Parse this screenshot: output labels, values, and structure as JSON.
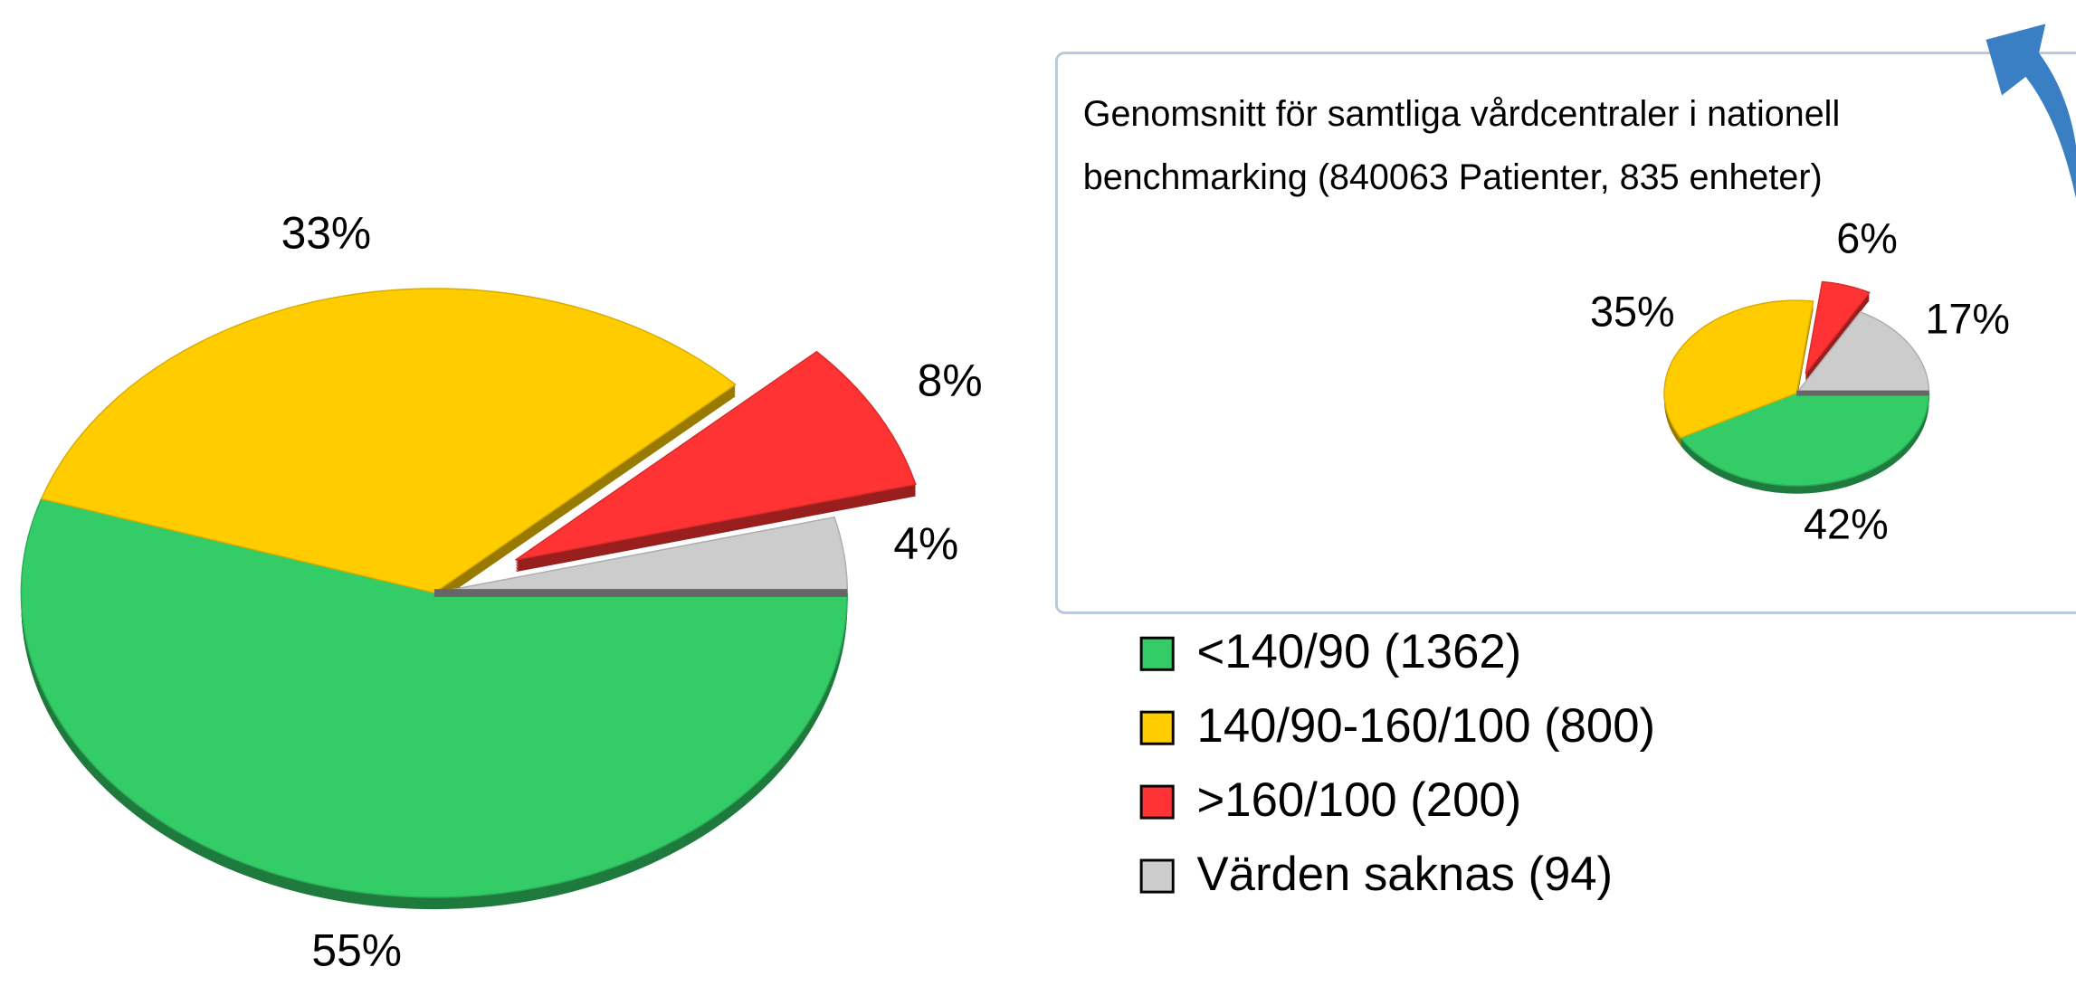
{
  "chart_data": [
    {
      "type": "pie",
      "categories": [
        "<140/90 (1362)",
        "140/90-160/100 (800)",
        ">160/100 (200)",
        "Värden saknas (94)"
      ],
      "values": [
        55,
        33,
        8,
        4
      ],
      "value_labels": [
        "55%",
        "33%",
        "8%",
        "4%"
      ],
      "colors": [
        "#33cc66",
        "#ffcc00",
        "#ff3333",
        "#cccccc"
      ],
      "exploded": [
        false,
        false,
        true,
        false
      ]
    },
    {
      "type": "pie",
      "title": "Genomsnitt för samtliga vårdcentraler i nationell benchmarking (840063 Patienter, 835 enheter)",
      "values": [
        42,
        35,
        6,
        17
      ],
      "value_labels": [
        "42%",
        "35%",
        "6%",
        "17%"
      ],
      "colors": [
        "#33cc66",
        "#ffcc00",
        "#ff3333",
        "#cccccc"
      ],
      "exploded": [
        false,
        false,
        true,
        false
      ]
    }
  ]
}
